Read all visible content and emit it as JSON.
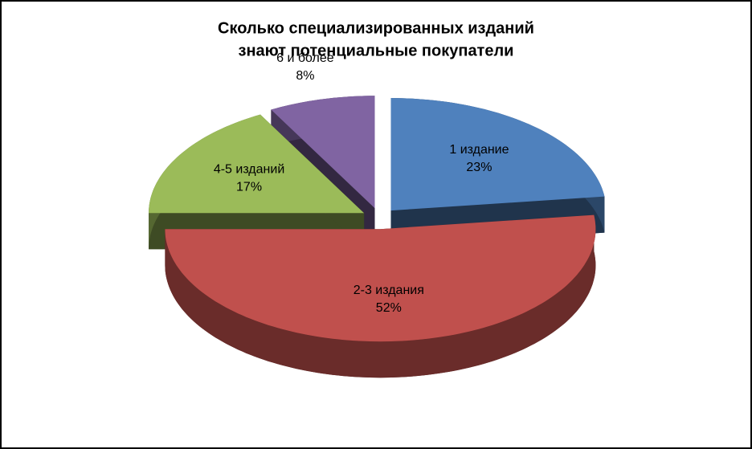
{
  "chart_data": {
    "type": "pie3d",
    "title": [
      "Сколько специализированных изданий",
      "знают потенциальные покупатели"
    ],
    "categories": [
      "1 издание",
      "2-3 издания",
      "4-5 изданий",
      "6 и более"
    ],
    "values": [
      23,
      52,
      17,
      8
    ],
    "value_labels": [
      "23%",
      "52%",
      "17%",
      "8%"
    ],
    "colors": [
      "#4f81bd",
      "#c0504d",
      "#9bbb59",
      "#8064a2"
    ]
  }
}
